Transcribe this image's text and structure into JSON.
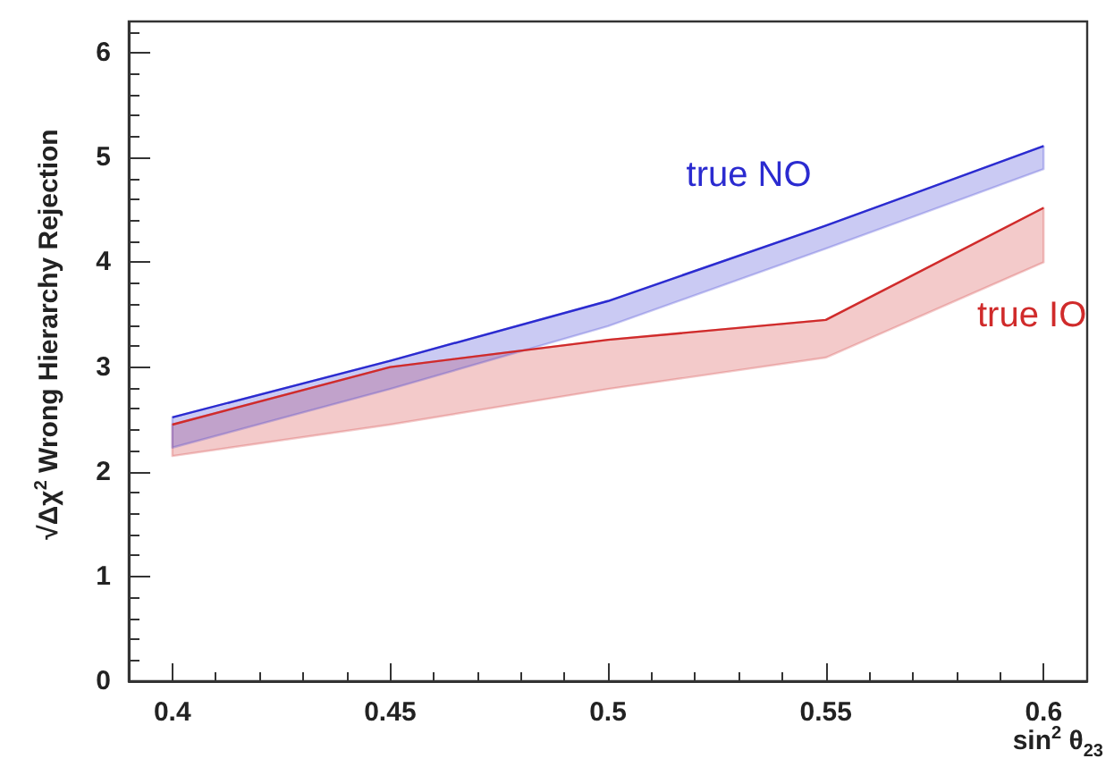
{
  "chart_data": {
    "type": "line",
    "xlabel": "sin$^{2}$ θ$_{23}$",
    "ylabel": "√Δχ$^{2}$ Wrong Hierarchy Rejection",
    "x": [
      0.4,
      0.45,
      0.5,
      0.55,
      0.6
    ],
    "series": [
      {
        "name": "true NO",
        "color": "#2b2bd0",
        "values": [
          2.52,
          3.06,
          3.63,
          4.35,
          5.11
        ],
        "lower": [
          2.23,
          2.79,
          3.39,
          4.13,
          4.89
        ],
        "upper": [
          2.52,
          3.06,
          3.63,
          4.35,
          5.11
        ]
      },
      {
        "name": "true IO",
        "color": "#d02b2b",
        "values": [
          2.45,
          3.0,
          3.26,
          3.45,
          4.52
        ],
        "lower": [
          2.15,
          2.45,
          2.79,
          3.09,
          4.0
        ],
        "upper": [
          2.45,
          3.0,
          3.26,
          3.45,
          4.52
        ]
      }
    ],
    "xlim": [
      0.39,
      0.61
    ],
    "xticks": [
      0.4,
      0.45,
      0.5,
      0.55,
      0.6
    ],
    "ylim": [
      0,
      6.3
    ],
    "yticks": [
      0,
      1,
      2,
      3,
      4,
      5,
      6
    ],
    "grid": false,
    "legend": false
  }
}
